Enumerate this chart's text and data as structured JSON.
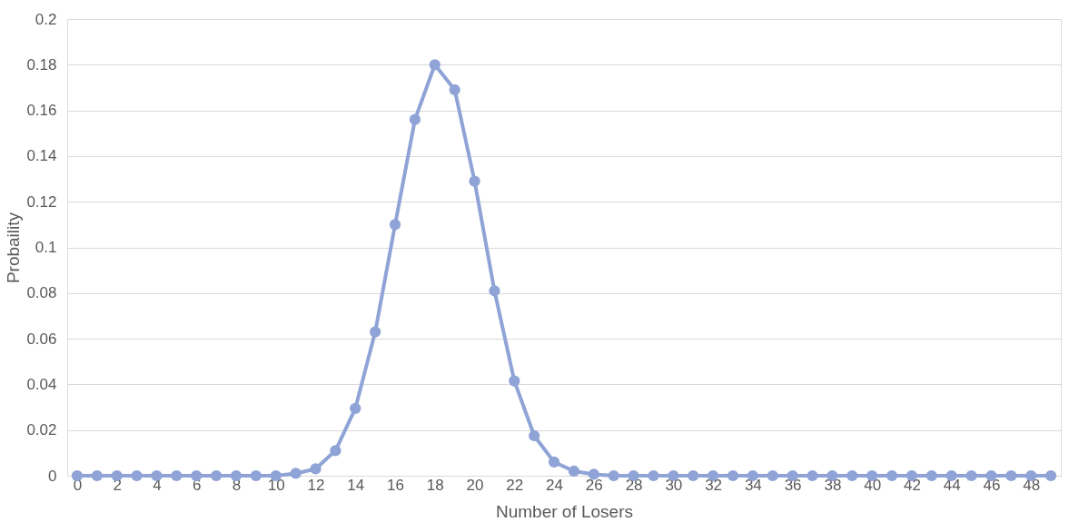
{
  "chart_data": {
    "type": "line",
    "xlabel": "Number of Losers",
    "ylabel": "Probaility",
    "x": [
      0,
      1,
      2,
      3,
      4,
      5,
      6,
      7,
      8,
      9,
      10,
      11,
      12,
      13,
      14,
      15,
      16,
      17,
      18,
      19,
      20,
      21,
      22,
      23,
      24,
      25,
      26,
      27,
      28,
      29,
      30,
      31,
      32,
      33,
      34,
      35,
      36,
      37,
      38,
      39,
      40,
      41,
      42,
      43,
      44,
      45,
      46,
      47,
      48,
      49
    ],
    "series": [
      {
        "color": "#8fa3d6",
        "values": [
          0,
          0,
          0,
          0,
          0,
          0,
          0,
          0,
          0,
          0,
          0,
          0.001,
          0.003,
          0.011,
          0.0295,
          0.063,
          0.11,
          0.156,
          0.18,
          0.169,
          0.129,
          0.081,
          0.0415,
          0.0175,
          0.006,
          0.002,
          0.0006,
          0,
          0,
          0,
          0,
          0,
          0,
          0,
          0,
          0,
          0,
          0,
          0,
          0,
          0,
          0,
          0,
          0,
          0,
          0,
          0,
          0,
          0,
          0
        ]
      }
    ],
    "xlim": [
      -0.5,
      49.5
    ],
    "xticks": [
      0,
      2,
      4,
      6,
      8,
      10,
      12,
      14,
      16,
      18,
      20,
      22,
      24,
      26,
      28,
      30,
      32,
      34,
      36,
      38,
      40,
      42,
      44,
      46,
      48
    ],
    "ylim": [
      0,
      0.2
    ],
    "yticks": [
      0,
      0.02,
      0.04,
      0.06,
      0.08,
      0.1,
      0.12,
      0.14,
      0.16,
      0.18,
      0.2
    ],
    "grid": "y",
    "marker": "circle",
    "line_style": "solid"
  }
}
